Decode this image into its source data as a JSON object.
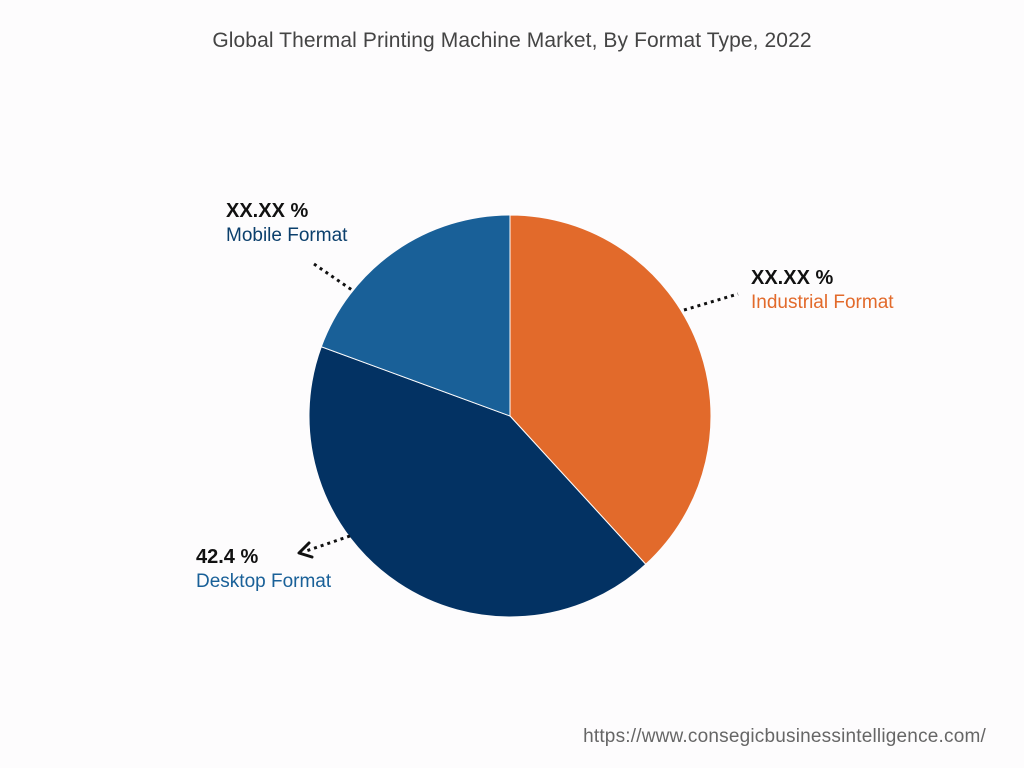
{
  "chart_data": {
    "type": "pie",
    "title": "Global Thermal Printing Machine Market, By Format Type, 2022",
    "slices": [
      {
        "name": "Industrial Format",
        "label_value": "XX.XX %",
        "value": 38.2,
        "color": "#e26a2b"
      },
      {
        "name": "Desktop Format",
        "label_value": "42.4 %",
        "value": 42.4,
        "color": "#033263"
      },
      {
        "name": "Mobile Format",
        "label_value": "XX.XX %",
        "value": 19.4,
        "color": "#196098"
      }
    ],
    "start_angle_deg": 0,
    "direction": "clockwise",
    "legend": "none"
  },
  "labels": {
    "mobile": {
      "value": "XX.XX %",
      "name": "Mobile Format",
      "color": "#0b3f6c"
    },
    "industrial": {
      "value": "XX.XX %",
      "name": "Industrial Format",
      "color": "#e26a2b"
    },
    "desktop": {
      "value": "42.4 %",
      "name": "Desktop Format",
      "color": "#196098"
    }
  },
  "source": {
    "url": "https://www.consegicbusinessintelligence.com/"
  }
}
